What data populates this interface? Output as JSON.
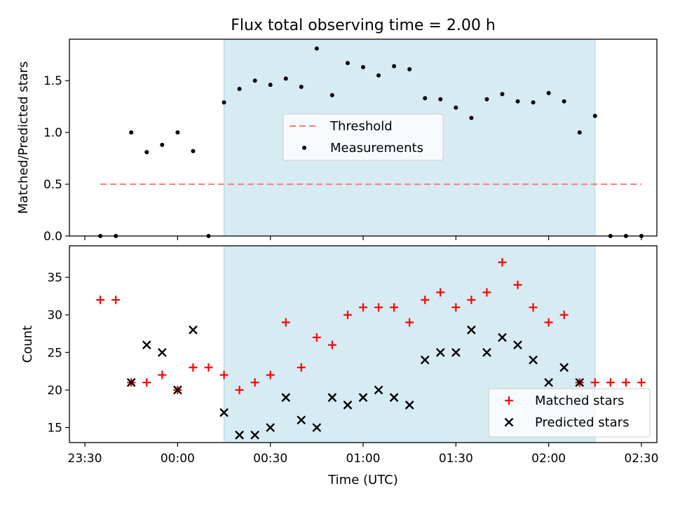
{
  "title": "Flux total observing time = 2.00 h",
  "colors": {
    "shade": "#add8e6",
    "threshold": "#ff7f7f",
    "measurement": "#000000",
    "matched": "#ff0000",
    "predicted": "#000000"
  },
  "chart_data": [
    {
      "type": "scatter",
      "panel": "top",
      "ylabel": "Matched/Predicted stars",
      "xlabel": "",
      "xlim_minutes": [
        -35,
        155
      ],
      "ylim": [
        0,
        1.9
      ],
      "yticks": [
        0.0,
        0.5,
        1.0,
        1.5
      ],
      "ytick_labels": [
        "0.0",
        "0.5",
        "1.0",
        "1.5"
      ],
      "xtick_labels_shown": false,
      "shaded_interval": [
        "00:15",
        "02:15"
      ],
      "threshold": {
        "name": "Threshold",
        "value": 0.5,
        "x_start": "23:35",
        "x_end": "02:30",
        "style": "dashed"
      },
      "legend": {
        "placement": "center",
        "entries": [
          "Threshold",
          "Measurements"
        ]
      },
      "series": [
        {
          "name": "Measurements",
          "marker": "dot",
          "x": [
            "23:35",
            "23:40",
            "23:45",
            "23:50",
            "23:55",
            "00:00",
            "00:05",
            "00:10",
            "00:15",
            "00:20",
            "00:25",
            "00:30",
            "00:35",
            "00:40",
            "00:45",
            "00:50",
            "00:55",
            "01:00",
            "01:05",
            "01:10",
            "01:15",
            "01:20",
            "01:25",
            "01:30",
            "01:35",
            "01:40",
            "01:45",
            "01:50",
            "01:55",
            "02:00",
            "02:05",
            "02:10",
            "02:15",
            "02:20",
            "02:25",
            "02:30"
          ],
          "y": [
            0.0,
            0.0,
            1.0,
            0.81,
            0.88,
            1.0,
            0.82,
            0.0,
            1.29,
            1.42,
            1.5,
            1.46,
            1.52,
            1.44,
            1.81,
            1.36,
            1.67,
            1.63,
            1.55,
            1.64,
            1.61,
            1.33,
            1.32,
            1.24,
            1.14,
            1.32,
            1.37,
            1.3,
            1.29,
            1.38,
            1.3,
            1.0,
            1.16,
            0.0,
            0.0,
            0.0
          ]
        }
      ]
    },
    {
      "type": "scatter",
      "panel": "bottom",
      "ylabel": "Count",
      "xlabel": "Time (UTC)",
      "xlim_minutes": [
        -35,
        155
      ],
      "ylim": [
        13,
        39.2
      ],
      "yticks": [
        15,
        20,
        25,
        30,
        35
      ],
      "ytick_labels": [
        "15",
        "20",
        "25",
        "30",
        "35"
      ],
      "xticks_minutes": [
        -30,
        0,
        30,
        60,
        90,
        120,
        150
      ],
      "xtick_labels": [
        "23:30",
        "00:00",
        "00:30",
        "01:00",
        "01:30",
        "02:00",
        "02:30"
      ],
      "shaded_interval": [
        "00:15",
        "02:15"
      ],
      "legend": {
        "placement": "lower right",
        "entries": [
          "Matched stars",
          "Predicted stars"
        ]
      },
      "series": [
        {
          "name": "Matched stars",
          "marker": "plus",
          "x": [
            "23:35",
            "23:40",
            "23:45",
            "23:50",
            "23:55",
            "00:00",
            "00:05",
            "00:10",
            "00:15",
            "00:20",
            "00:25",
            "00:30",
            "00:35",
            "00:40",
            "00:45",
            "00:50",
            "00:55",
            "01:00",
            "01:05",
            "01:10",
            "01:15",
            "01:20",
            "01:25",
            "01:30",
            "01:35",
            "01:40",
            "01:45",
            "01:50",
            "01:55",
            "02:00",
            "02:05",
            "02:10",
            "02:15",
            "02:20",
            "02:25",
            "02:30"
          ],
          "y": [
            32,
            32,
            21,
            21,
            22,
            20,
            23,
            23,
            22,
            20,
            21,
            22,
            29,
            23,
            27,
            26,
            30,
            31,
            31,
            31,
            29,
            32,
            33,
            31,
            32,
            33,
            37,
            34,
            31,
            29,
            30,
            21,
            21,
            21,
            21,
            21
          ]
        },
        {
          "name": "Predicted stars",
          "marker": "x",
          "x": [
            "23:45",
            "23:50",
            "23:55",
            "00:00",
            "00:05",
            "00:15",
            "00:20",
            "00:25",
            "00:30",
            "00:35",
            "00:40",
            "00:45",
            "00:50",
            "00:55",
            "01:00",
            "01:05",
            "01:10",
            "01:15",
            "01:20",
            "01:25",
            "01:30",
            "01:35",
            "01:40",
            "01:45",
            "01:50",
            "01:55",
            "02:00",
            "02:05",
            "02:10"
          ],
          "y": [
            21,
            26,
            25,
            20,
            28,
            17,
            14,
            14,
            15,
            19,
            16,
            15,
            19,
            18,
            19,
            20,
            19,
            18,
            24,
            25,
            25,
            28,
            25,
            27,
            26,
            24,
            21,
            23,
            21
          ]
        }
      ]
    }
  ]
}
